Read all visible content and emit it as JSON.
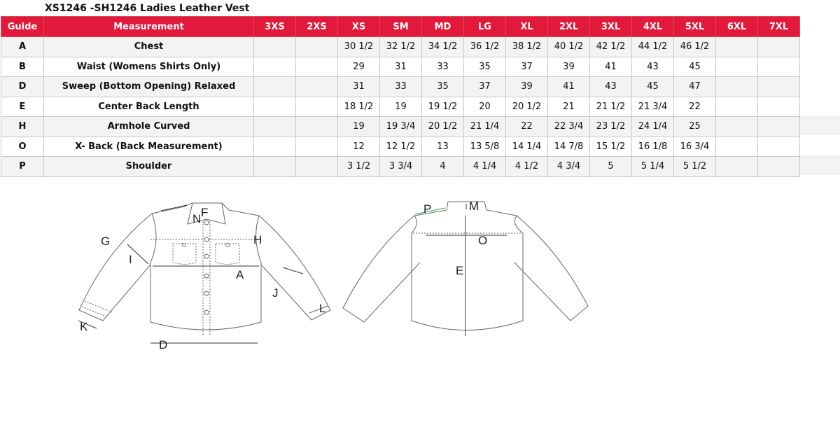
{
  "title": "XS1246 -SH1246 Ladies Leather Vest",
  "table": {
    "headers": [
      "Guide",
      "Measurement",
      "3XS",
      "2XS",
      "XS",
      "SM",
      "MD",
      "LG",
      "XL",
      "2XL",
      "3XL",
      "4XL",
      "5XL",
      "6XL",
      "7XL"
    ],
    "rows": [
      {
        "guide": "A",
        "measurement": "Chest",
        "values": [
          "",
          "",
          "30 1/2",
          "32 1/2",
          "34 1/2",
          "36 1/2",
          "38 1/2",
          "40 1/2",
          "42 1/2",
          "44 1/2",
          "46 1/2",
          "",
          ""
        ]
      },
      {
        "guide": "B",
        "measurement": "Waist (Womens Shirts Only)",
        "values": [
          "",
          "",
          "29",
          "31",
          "33",
          "35",
          "37",
          "39",
          "41",
          "43",
          "45",
          "",
          ""
        ]
      },
      {
        "guide": "D",
        "measurement": "Sweep (Bottom Opening)  Relaxed",
        "values": [
          "",
          "",
          "31",
          "33",
          "35",
          "37",
          "39",
          "41",
          "43",
          "45",
          "47",
          "",
          ""
        ]
      },
      {
        "guide": "E",
        "measurement": "Center Back Length",
        "values": [
          "",
          "",
          "18 1/2",
          "19",
          "19 1/2",
          "20",
          "20 1/2",
          "21",
          "21 1/2",
          "21 3/4",
          "22",
          "",
          ""
        ]
      },
      {
        "guide": "H",
        "measurement": "Armhole Curved",
        "values": [
          "",
          "",
          "19",
          "19 3/4",
          "20 1/2",
          "21 1/4",
          "22",
          "22 3/4",
          "23 1/2",
          "24 1/4",
          "25",
          "",
          ""
        ]
      },
      {
        "guide": "O",
        "measurement": "X- Back (Back Measurement)",
        "values": [
          "",
          "",
          "12",
          "12 1/2",
          "13",
          "13 5/8",
          "14 1/4",
          "14 7/8",
          "15 1/2",
          "16 1/8",
          "16 3/4",
          "",
          ""
        ]
      },
      {
        "guide": "P",
        "measurement": "Shoulder",
        "values": [
          "",
          "",
          "3 1/2",
          "3 3/4",
          "4",
          "4 1/4",
          "4 1/2",
          "4 3/4",
          "5",
          "5 1/4",
          "5 1/2",
          "",
          ""
        ]
      }
    ]
  },
  "diagram": {
    "front_labels": {
      "G": "G",
      "I": "I",
      "H": "H",
      "A": "A",
      "J": "J",
      "K": "K",
      "D": "D",
      "F": "F",
      "N": "N",
      "L": "L"
    },
    "back_labels": {
      "P": "P",
      "M": "M",
      "O": "O",
      "E": "E"
    },
    "colors": {
      "header": "#e2193a",
      "F": "#29a8e0",
      "N": "#e2193a",
      "P": "#1aa84a",
      "line": "#555555"
    }
  }
}
